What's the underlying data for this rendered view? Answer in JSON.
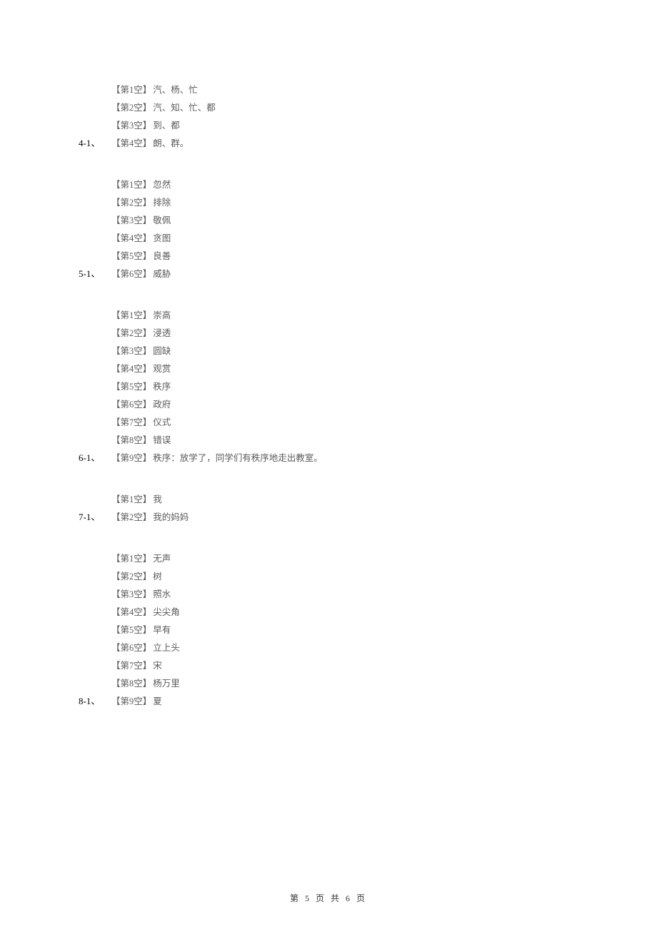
{
  "groups": [
    {
      "id": "4-1",
      "lines": [
        {
          "label": "【第1空】",
          "value": "汽、杨、忙",
          "hasNumber": false
        },
        {
          "label": "【第2空】",
          "value": "汽、知、忙、都",
          "hasNumber": false
        },
        {
          "label": "【第3空】",
          "value": "到、都",
          "hasNumber": false
        },
        {
          "label": "【第4空】",
          "value": "朗、群。",
          "hasNumber": true,
          "number": "4-1、"
        }
      ]
    },
    {
      "id": "5-1",
      "lines": [
        {
          "label": "【第1空】",
          "value": "忽然",
          "hasNumber": false
        },
        {
          "label": "【第2空】",
          "value": "排除",
          "hasNumber": false
        },
        {
          "label": "【第3空】",
          "value": "敬佩",
          "hasNumber": false
        },
        {
          "label": "【第4空】",
          "value": "贪图",
          "hasNumber": false
        },
        {
          "label": "【第5空】",
          "value": "良善",
          "hasNumber": false
        },
        {
          "label": "【第6空】",
          "value": "威胁",
          "hasNumber": true,
          "number": "5-1、"
        }
      ]
    },
    {
      "id": "6-1",
      "lines": [
        {
          "label": "【第1空】",
          "value": "崇高",
          "hasNumber": false
        },
        {
          "label": "【第2空】",
          "value": "浸透",
          "hasNumber": false
        },
        {
          "label": "【第3空】",
          "value": "圆缺",
          "hasNumber": false
        },
        {
          "label": "【第4空】",
          "value": "观赏",
          "hasNumber": false
        },
        {
          "label": "【第5空】",
          "value": "秩序",
          "hasNumber": false
        },
        {
          "label": "【第6空】",
          "value": "政府",
          "hasNumber": false
        },
        {
          "label": "【第7空】",
          "value": "仪式",
          "hasNumber": false
        },
        {
          "label": "【第8空】",
          "value": "错误",
          "hasNumber": false
        },
        {
          "label": "【第9空】",
          "value": "秩序：放学了，同学们有秩序地走出教室。",
          "hasNumber": true,
          "number": "6-1、"
        }
      ]
    },
    {
      "id": "7-1",
      "lines": [
        {
          "label": "【第1空】",
          "value": "我",
          "hasNumber": false
        },
        {
          "label": "【第2空】",
          "value": "我的妈妈",
          "hasNumber": true,
          "number": "7-1、"
        }
      ]
    },
    {
      "id": "8-1",
      "lines": [
        {
          "label": "【第1空】",
          "value": "无声",
          "hasNumber": false
        },
        {
          "label": "【第2空】",
          "value": "树",
          "hasNumber": false
        },
        {
          "label": "【第3空】",
          "value": "照水",
          "hasNumber": false
        },
        {
          "label": "【第4空】",
          "value": "尖尖角",
          "hasNumber": false
        },
        {
          "label": "【第5空】",
          "value": "早有",
          "hasNumber": false
        },
        {
          "label": "【第6空】",
          "value": "立上头",
          "hasNumber": false
        },
        {
          "label": "【第7空】",
          "value": "宋",
          "hasNumber": false
        },
        {
          "label": "【第8空】",
          "value": "杨万里",
          "hasNumber": false
        },
        {
          "label": "【第9空】",
          "value": "夏",
          "hasNumber": true,
          "number": "8-1、"
        }
      ]
    }
  ],
  "footer": "第 5 页 共 6 页"
}
